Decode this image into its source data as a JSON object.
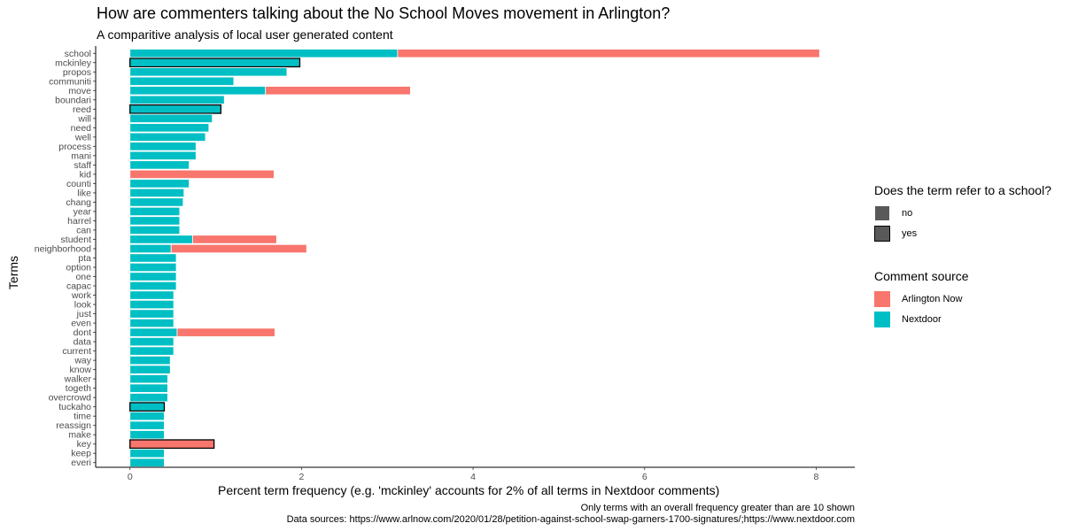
{
  "header": {
    "title": "How are commenters talking about the No School Moves movement in Arlington?",
    "subtitle": "A comparitive analysis of local user generated content"
  },
  "caption": {
    "line1": "Only terms with an overall frequency greater than are 10 shown",
    "line2": "Data sources: https://www.arlnow.com/2020/01/28/petition-against-school-swap-garners-1700-signatures/;https://www.nextdoor.com"
  },
  "legend_school": {
    "title": "Does the term refer to a school?",
    "items": [
      "no",
      "yes"
    ]
  },
  "legend_source": {
    "title": "Comment source",
    "items": [
      "Arlington Now",
      "Nextdoor"
    ]
  },
  "colors": {
    "arlington_now": "#F8766D",
    "nextdoor": "#00BFC4",
    "school_fill": "#595959"
  },
  "chart_data": {
    "type": "bar",
    "orientation": "horizontal",
    "stacked": true,
    "xlabel": "Percent term frequency (e.g. 'mckinley' accounts for 2% of all terms in Nextdoor comments)",
    "ylabel": "Terms",
    "xlim": [
      -0.4,
      8.45
    ],
    "xticks": [
      0,
      2,
      4,
      6,
      8
    ],
    "grid": false,
    "legend_position": "right",
    "categories": [
      "school",
      "mckinley",
      "propos",
      "communiti",
      "move",
      "boundari",
      "reed",
      "will",
      "need",
      "well",
      "process",
      "mani",
      "staff",
      "kid",
      "counti",
      "like",
      "chang",
      "year",
      "harrel",
      "can",
      "student",
      "neighborhood",
      "pta",
      "option",
      "one",
      "capac",
      "work",
      "look",
      "just",
      "even",
      "dont",
      "data",
      "current",
      "way",
      "know",
      "walker",
      "togeth",
      "overcrowd",
      "tuckaho",
      "time",
      "reassign",
      "make",
      "key",
      "keep",
      "everi"
    ],
    "school_terms": [
      "mckinley",
      "reed",
      "tuckaho",
      "key"
    ],
    "series": [
      {
        "name": "Nextdoor",
        "values": [
          3.12,
          1.98,
          1.83,
          1.21,
          1.58,
          1.1,
          1.06,
          0.96,
          0.92,
          0.88,
          0.77,
          0.77,
          0.69,
          0,
          0.69,
          0.63,
          0.62,
          0.58,
          0.58,
          0.58,
          0.73,
          0.48,
          0.54,
          0.54,
          0.54,
          0.54,
          0.51,
          0.51,
          0.51,
          0.51,
          0.55,
          0.51,
          0.51,
          0.47,
          0.47,
          0.44,
          0.44,
          0.44,
          0.4,
          0.4,
          0.4,
          0.4,
          0,
          0.4,
          0.4
        ]
      },
      {
        "name": "Arlington Now",
        "values": [
          4.92,
          0,
          0,
          0,
          1.69,
          0,
          0,
          0,
          0,
          0,
          0,
          0,
          0,
          1.68,
          0,
          0,
          0,
          0,
          0,
          0,
          0.98,
          1.58,
          0,
          0,
          0,
          0,
          0,
          0,
          0,
          0,
          1.14,
          0,
          0,
          0,
          0,
          0,
          0,
          0,
          0,
          0,
          0,
          0,
          0.98,
          0,
          0
        ]
      }
    ]
  }
}
